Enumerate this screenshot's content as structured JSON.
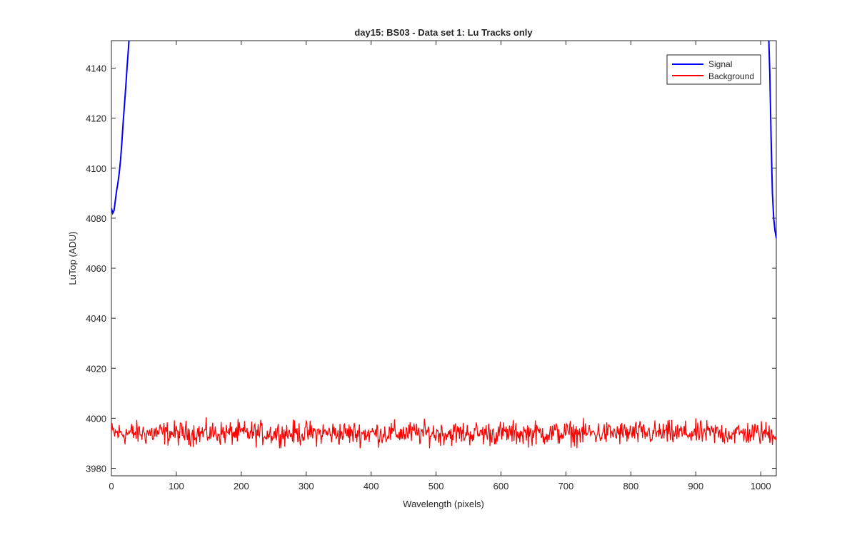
{
  "chart_data": {
    "type": "line",
    "title": "day15: BS03 - Data set 1: Lu Tracks only",
    "xlabel": "Wavelength (pixels)",
    "ylabel": "LuTop (ADU)",
    "xlim": [
      0,
      1024
    ],
    "ylim": [
      3977,
      4151
    ],
    "xticks": [
      0,
      100,
      200,
      300,
      400,
      500,
      600,
      700,
      800,
      900,
      1000
    ],
    "yticks": [
      3980,
      4000,
      4020,
      4040,
      4060,
      4080,
      4100,
      4120,
      4140
    ],
    "grid": false,
    "legend_position": "top-right",
    "series": [
      {
        "name": "Signal",
        "color": "#0000ff",
        "x": [
          0,
          2,
          4,
          6,
          8,
          10,
          12,
          14,
          16,
          18,
          20,
          22,
          24,
          26,
          28,
          1012,
          1014,
          1016,
          1018,
          1020,
          1022,
          1024
        ],
        "y": [
          4084,
          4082,
          4083,
          4087,
          4091,
          4094,
          4098,
          4103,
          4110,
          4118,
          4125,
          4132,
          4140,
          4147,
          4155,
          4155,
          4138,
          4112,
          4090,
          4080,
          4075,
          4072
        ]
      },
      {
        "name": "Background",
        "color": "#ff0000",
        "x_range": [
          0,
          1024
        ],
        "mean": 3994,
        "range": [
          3988,
          4001
        ]
      }
    ]
  }
}
